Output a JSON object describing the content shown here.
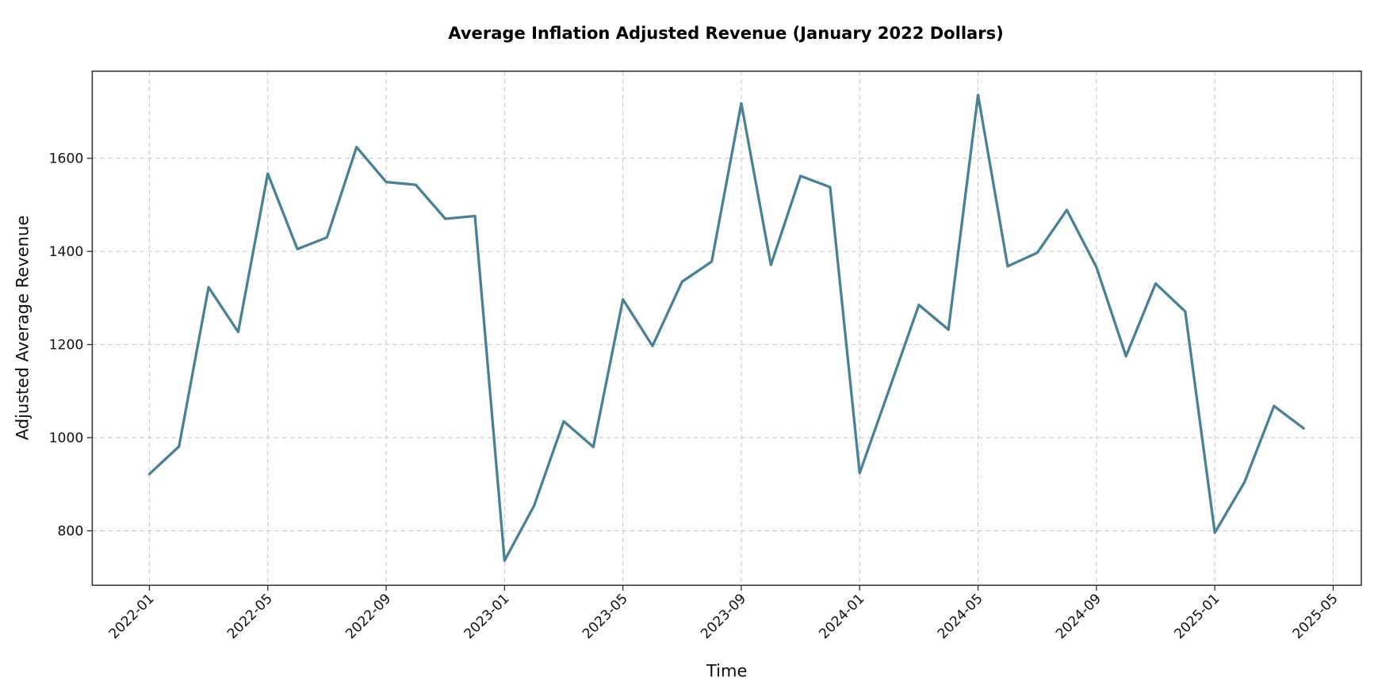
{
  "chart_data": {
    "type": "line",
    "title": "Average Inflation Adjusted Revenue (January 2022 Dollars)",
    "xlabel": "Time",
    "ylabel": "Adjusted Average Revenue",
    "ylim": [
      683,
      1787
    ],
    "xlim_months_from_2022_01": [
      -1.93,
      40.95
    ],
    "grid": true,
    "legend": "none",
    "x_tick_labels": [
      "2022-01",
      "2022-05",
      "2022-09",
      "2023-01",
      "2023-05",
      "2023-09",
      "2024-01",
      "2024-05",
      "2024-09",
      "2025-01",
      "2025-05"
    ],
    "x_tick_months": [
      0,
      4,
      8,
      12,
      16,
      20,
      24,
      28,
      32,
      36,
      40
    ],
    "y_ticks": [
      800,
      1000,
      1200,
      1400,
      1600
    ],
    "y_tick_labels": [
      "800",
      "1000",
      "1200",
      "1400",
      "1600"
    ],
    "x": [
      "2022-01",
      "2022-02",
      "2022-03",
      "2022-04",
      "2022-05",
      "2022-06",
      "2022-07",
      "2022-08",
      "2022-09",
      "2022-10",
      "2022-11",
      "2022-12",
      "2023-01",
      "2023-02",
      "2023-03",
      "2023-04",
      "2023-05",
      "2023-06",
      "2023-07",
      "2023-08",
      "2023-09",
      "2023-10",
      "2023-11",
      "2023-12",
      "2024-01",
      "2024-02",
      "2024-03",
      "2024-04",
      "2024-05",
      "2024-06",
      "2024-07",
      "2024-08",
      "2024-09",
      "2024-10",
      "2024-11",
      "2024-12",
      "2025-01",
      "2025-02",
      "2025-03",
      "2025-04"
    ],
    "series": [
      {
        "name": "Adjusted Average Revenue",
        "color": "#4a8294",
        "values": [
          922,
          981,
          1323,
          1227,
          1567,
          1405,
          1430,
          1624,
          1549,
          1543,
          1470,
          1476,
          736,
          854,
          1035,
          980,
          1297,
          1197,
          1335,
          1378,
          1718,
          1371,
          1562,
          1538,
          924,
          1104,
          1285,
          1232,
          1736,
          1368,
          1397,
          1489,
          1366,
          1175,
          1331,
          1271,
          796,
          904,
          1068,
          1020
        ]
      }
    ]
  }
}
